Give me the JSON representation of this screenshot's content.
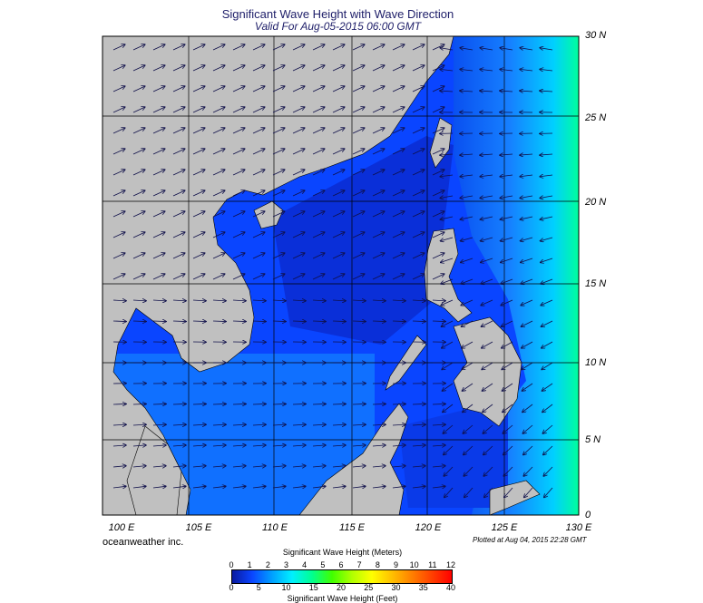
{
  "title": "Significant Wave Height with Wave Direction",
  "subtitle": "Valid For Aug-05-2015 06:00 GMT",
  "lat_labels": [
    "30 N",
    "25 N",
    "20 N",
    "15 N",
    "10 N",
    "5 N",
    "0"
  ],
  "lon_labels": [
    "100 E",
    "105 E",
    "110 E",
    "115 E",
    "120 E",
    "125 E",
    "130 E"
  ],
  "credit": "oceanweather inc.",
  "plotted": "Plotted at Aug 04, 2015 22:28 GMT",
  "legend": {
    "meters_title": "Significant Wave Height (Meters)",
    "feet_title": "Significant Wave Height (Feet)",
    "meters_ticks": [
      "0",
      "1",
      "2",
      "3",
      "4",
      "5",
      "6",
      "7",
      "8",
      "9",
      "10",
      "11",
      "12"
    ],
    "feet_ticks": [
      "0",
      "5",
      "10",
      "15",
      "20",
      "25",
      "30",
      "35",
      "40"
    ],
    "colors": [
      "#0a1aa0",
      "#0a45ff",
      "#00a0ff",
      "#00f0ff",
      "#00ff90",
      "#40ff00",
      "#b0ff00",
      "#ffff00",
      "#ffc000",
      "#ff8000",
      "#ff4000",
      "#ff0000"
    ]
  },
  "map": {
    "land_color": "#c0c0c0",
    "water_colors": {
      "deep": "#0a2fd8",
      "mid": "#0a50f0",
      "light": "#1680ff",
      "cyan": "#00d8ff",
      "green": "#00ff8c"
    },
    "lon_range": [
      100,
      130
    ],
    "lat_range": [
      0,
      30
    ]
  }
}
